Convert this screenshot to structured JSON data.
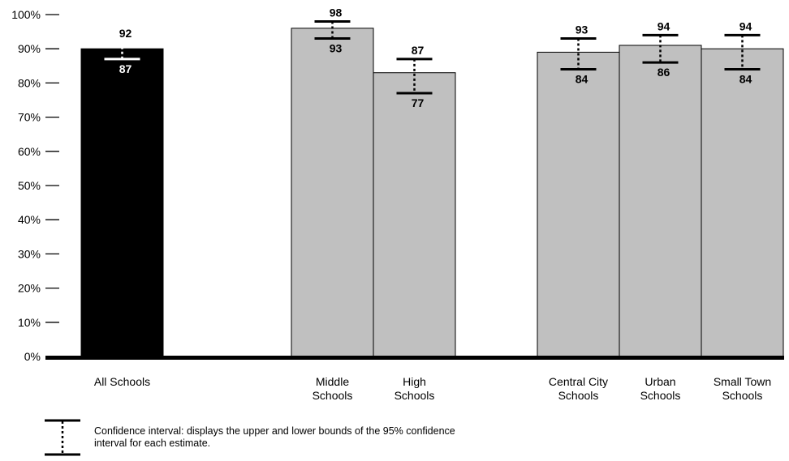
{
  "chart_data": {
    "type": "bar",
    "title": "",
    "xlabel": "",
    "ylabel": "",
    "ylim": [
      0,
      100
    ],
    "y_ticks": [
      0,
      10,
      20,
      30,
      40,
      50,
      60,
      70,
      80,
      90,
      100
    ],
    "y_tick_suffix": "%",
    "grid": false,
    "bars": [
      {
        "group": 0,
        "category": "All Schools",
        "category_lines": [
          "All Schools"
        ],
        "value": 90,
        "ci_upper": 92,
        "ci_lower": 87,
        "color": "#000000"
      },
      {
        "group": 1,
        "category": "Middle Schools",
        "category_lines": [
          "Middle",
          "Schools"
        ],
        "value": 96,
        "ci_upper": 98,
        "ci_lower": 93,
        "color": "#c0c0c0"
      },
      {
        "group": 1,
        "category": "High Schools",
        "category_lines": [
          "High",
          "Schools"
        ],
        "value": 83,
        "ci_upper": 87,
        "ci_lower": 77,
        "color": "#c0c0c0"
      },
      {
        "group": 2,
        "category": "Central City Schools",
        "category_lines": [
          "Central City",
          "Schools"
        ],
        "value": 89,
        "ci_upper": 93,
        "ci_lower": 84,
        "color": "#c0c0c0"
      },
      {
        "group": 2,
        "category": "Urban Schools",
        "category_lines": [
          "Urban",
          "Schools"
        ],
        "value": 91,
        "ci_upper": 94,
        "ci_lower": 86,
        "color": "#c0c0c0"
      },
      {
        "group": 2,
        "category": "Small Town Schools",
        "category_lines": [
          "Small Town",
          "Schools"
        ],
        "value": 90,
        "ci_upper": 94,
        "ci_lower": 84,
        "color": "#c0c0c0"
      }
    ],
    "legend": {
      "placement": "bottom-left",
      "text": "Confidence interval:  displays the upper and lower bounds of the 95% confidence interval for each estimate."
    }
  }
}
